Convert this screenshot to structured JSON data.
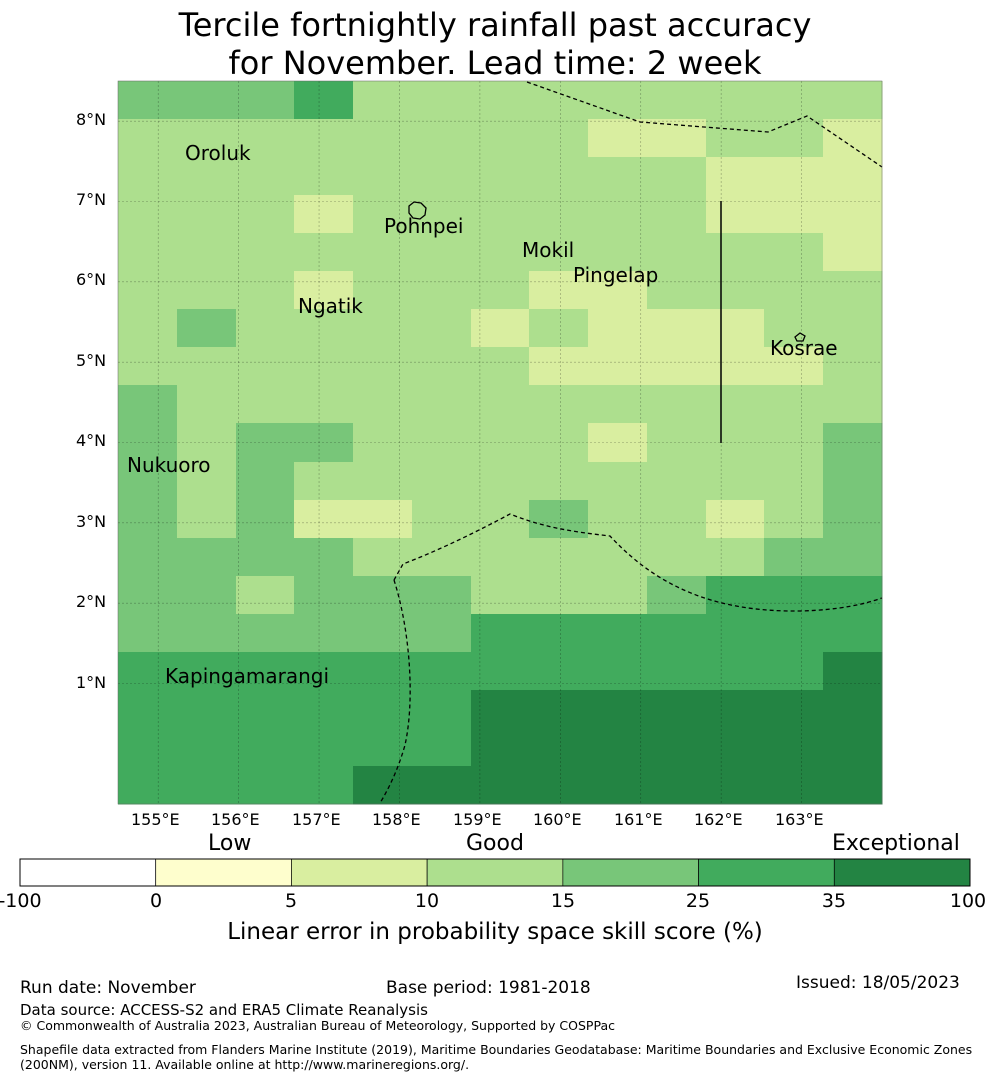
{
  "title": {
    "line1": "Tercile fortnightly rainfall past accuracy",
    "line2": "for November. Lead time: 2 week"
  },
  "map": {
    "lon_range": [
      154.5,
      164.0
    ],
    "lat_range": [
      -0.5,
      8.5
    ],
    "grid_lon_labels": [
      "155°E",
      "156°E",
      "157°E",
      "158°E",
      "159°E",
      "160°E",
      "161°E",
      "162°E",
      "163°E"
    ],
    "grid_lat_labels": [
      "1°N",
      "2°N",
      "3°N",
      "4°N",
      "5°N",
      "6°N",
      "7°N",
      "8°N"
    ],
    "cell_colors": [
      "#ffffff",
      "#fefecd",
      "#d9eea0",
      "#addf8e",
      "#78c679",
      "#41ab5d",
      "#238443"
    ],
    "grid_rows": [
      "4445333333333",
      "3333333322332",
      "3333333333222",
      "3332333333222",
      "3333333333332",
      "3332333223333",
      "3433332322233",
      "3333333222223",
      "4333333333333",
      "4344333323334",
      "4343333333334",
      "4342233433234",
      "4444333333344",
      "4434443334555",
      "4444445555555",
      "5555555555556",
      "5555556666666",
      "5555556666666",
      "5555666666666"
    ],
    "places": [
      {
        "name": "Oroluk",
        "lon": 155.8,
        "lat": 7.6
      },
      {
        "name": "Pohnpei",
        "lon": 158.2,
        "lat": 6.9
      },
      {
        "name": "Mokil",
        "lon": 159.4,
        "lat": 6.3
      },
      {
        "name": "Pingelap",
        "lon": 160.3,
        "lat": 6.1
      },
      {
        "name": "Ngatik",
        "lon": 157.7,
        "lat": 5.8
      },
      {
        "name": "Kosrae",
        "lon": 162.8,
        "lat": 5.3
      },
      {
        "name": "Nukuoro",
        "lon": 154.6,
        "lat": 3.6
      },
      {
        "name": "Kapingamarangi",
        "lon": 155.3,
        "lat": 1.1
      }
    ]
  },
  "colorbar": {
    "categories": [
      "Low",
      "Good",
      "Exceptional"
    ],
    "ticks": [
      "-100",
      "0",
      "5",
      "10",
      "15",
      "25",
      "35",
      "100"
    ],
    "colors": [
      "#ffffff",
      "#fefecd",
      "#d9eea0",
      "#addf8e",
      "#78c679",
      "#41ab5d",
      "#238443"
    ],
    "label": "Linear error in probability space skill score (%)"
  },
  "footer": {
    "run_date": "Run date: November",
    "base_period": "Base period: 1981-2018",
    "issued": "Issued: 18/05/2023",
    "data_source": "Data source: ACCESS-S2 and ERA5 Climate Reanalysis",
    "copyright": "© Commonwealth of Australia 2023, Australian Bureau of Meteorology, Supported by COSPPac",
    "shapefile_line1": "Shapefile data extracted from Flanders Marine Institute (2019), Maritime Boundaries Geodatabase: Maritime Boundaries and Exclusive Economic Zones",
    "shapefile_line2": "(200NM), version 11. Available online at http://www.marineregions.org/."
  }
}
